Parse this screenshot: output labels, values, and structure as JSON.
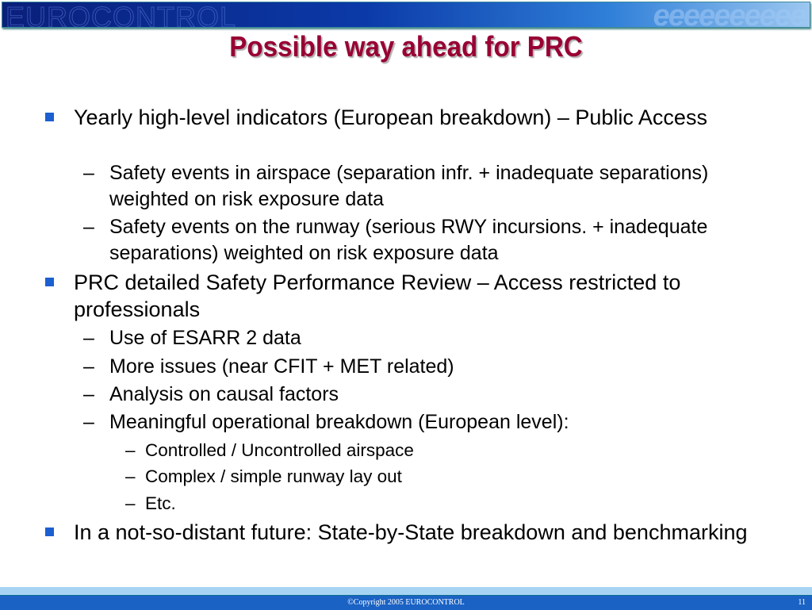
{
  "header": {
    "logo_text": "EUROCONTROL",
    "logo_pattern": "eeeeeeeeee"
  },
  "title": "Possible way ahead for PRC",
  "bullets": [
    {
      "text": "Yearly high-level indicators (European breakdown) – Public Access",
      "sub": [
        "Safety events in airspace (separation infr. + inadequate separations) weighted on risk exposure data",
        "Safety events on the runway (serious RWY incursions. + inadequate separations) weighted on risk exposure data"
      ]
    },
    {
      "text": "PRC detailed Safety Performance Review – Access restricted to professionals",
      "sub": [
        "Use of ESARR 2 data",
        "More issues (near CFIT + MET related)",
        "Analysis on causal factors",
        "Meaningful operational breakdown (European level):"
      ],
      "subsub": [
        "Controlled / Uncontrolled airspace",
        "Complex / simple runway lay out",
        "Etc."
      ]
    },
    {
      "text": "In a not-so-distant future: State-by-State breakdown and benchmarking"
    }
  ],
  "dash": "–",
  "footer": {
    "copyright": "©Copyright 2005 EUROCONTROL",
    "page_number": "11"
  },
  "colors": {
    "title": "#990033",
    "bullet": "#1c5fd0",
    "banner": "#0b3aa8",
    "footer": "#1a62c4"
  }
}
